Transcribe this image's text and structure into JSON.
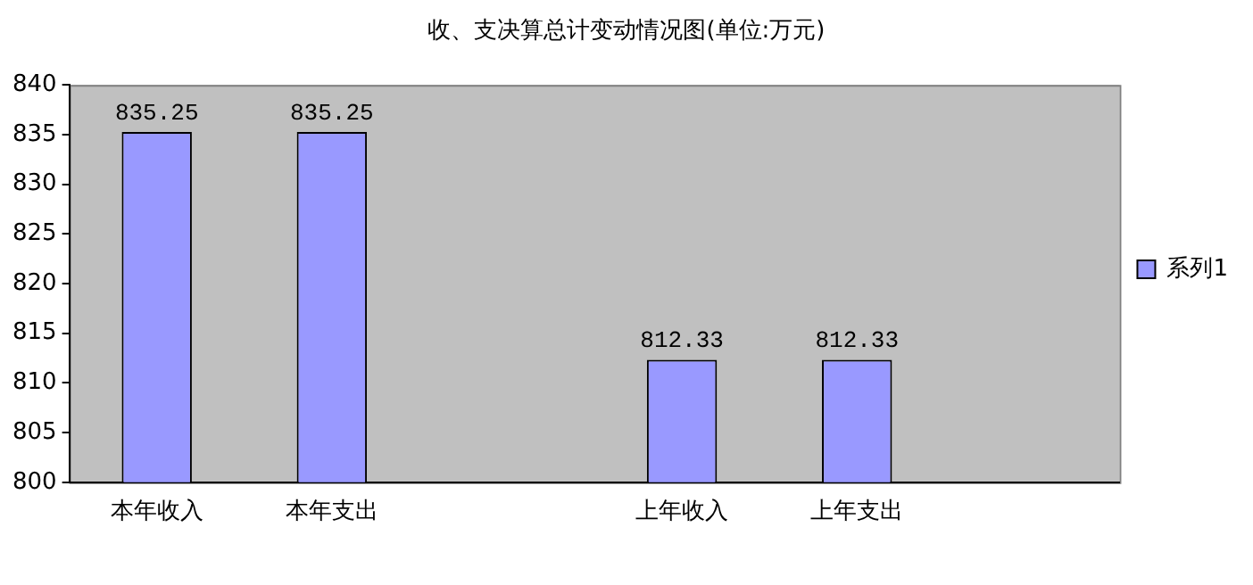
{
  "chart_data": {
    "type": "bar",
    "title": "收、支决算总计变动情况图(单位:万元)",
    "categories": [
      "本年收入",
      "本年支出",
      null,
      "上年收入",
      "上年支出",
      null
    ],
    "series": [
      {
        "name": "系列1",
        "color": "#9999ff",
        "values": [
          835.25,
          835.25,
          null,
          812.33,
          812.33,
          null
        ]
      }
    ],
    "ylim": [
      800,
      840
    ],
    "yticks": [
      800,
      805,
      810,
      815,
      820,
      825,
      830,
      835,
      840
    ],
    "grid": false,
    "legend": "right",
    "data_labels": true
  }
}
